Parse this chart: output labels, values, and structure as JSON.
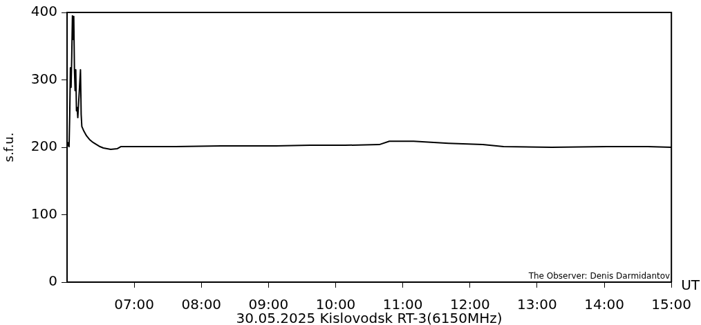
{
  "chart_data": {
    "type": "line",
    "xlabel": "UT",
    "ylabel": "s.f.u.",
    "annotations": [
      "30.05.2025 Kislovodsk RT-3(6150MHz)",
      "The Observer: Denis Darmidantov"
    ],
    "x": [
      6.0,
      6.02,
      6.03,
      6.04,
      6.05,
      6.06,
      6.07,
      6.08,
      6.09,
      6.1,
      6.11,
      6.12,
      6.13,
      6.14,
      6.15,
      6.16,
      6.2,
      6.21,
      6.22,
      6.25,
      6.29,
      6.34,
      6.39,
      6.44,
      6.49,
      6.54,
      6.65,
      6.75,
      6.8,
      6.85,
      7.57,
      8.29,
      9.11,
      9.62,
      10.14,
      10.65,
      10.8,
      11.16,
      11.68,
      12.19,
      12.5,
      13.22,
      14.04,
      14.65,
      15.0
    ],
    "series": [
      {
        "color": "#000000",
        "values": [
          200,
          207,
          201,
          249,
          318,
          289,
          335,
          395,
          360,
          394,
          315,
          284,
          315,
          254,
          259,
          244,
          315,
          249,
          231,
          224,
          217,
          211,
          207,
          204,
          201,
          199,
          197,
          198,
          201,
          201,
          201,
          202,
          202,
          203,
          203,
          204,
          209,
          209,
          206,
          204,
          201,
          200,
          201,
          201,
          200
        ]
      }
    ],
    "xlim": [
      6,
      15
    ],
    "xticks": [
      {
        "value": 7,
        "label": "07:00"
      },
      {
        "value": 8,
        "label": "08:00"
      },
      {
        "value": 9,
        "label": "09:00"
      },
      {
        "value": 10,
        "label": "10:00"
      },
      {
        "value": 11,
        "label": "11:00"
      },
      {
        "value": 12,
        "label": "12:00"
      },
      {
        "value": 13,
        "label": "13:00"
      },
      {
        "value": 14,
        "label": "14:00"
      },
      {
        "value": 15,
        "label": "15:00"
      }
    ],
    "ylim": [
      0,
      400
    ],
    "yticks": [
      0,
      100,
      200,
      300,
      400
    ],
    "grid": false,
    "legend": false,
    "marker": "none",
    "line_style": "solid"
  }
}
